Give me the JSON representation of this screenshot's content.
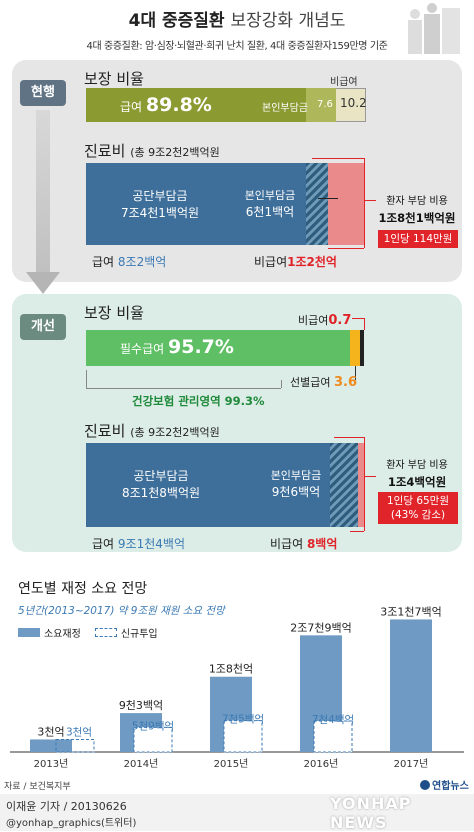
{
  "header": {
    "title_bold": "4대 중증질환",
    "title_light": "보장강화 개념도",
    "subtitle": "4대 중증질환: 암·심장·뇌혈관·희귀 난치 질환, 4대 중증질환자159만명 기준"
  },
  "current": {
    "pill": "현행",
    "coverage_label": "보장 비율",
    "benefit_prefix": "급여",
    "benefit_pct": "89.8%",
    "self_pay_label": "본인부담금",
    "self_pay_pct": "7.6",
    "non_covered_label": "비급여",
    "non_covered_pct": "10.2",
    "cost_label": "진료비",
    "cost_sub": "(총 9조2천2백억원",
    "public_label": "공단부담금",
    "public_value": "7조4천1백억원",
    "self_label": "본인부담금",
    "self_value": "6천1백억",
    "patient_label": "환자 부담 비용",
    "patient_value": "1조8천1백억원",
    "per_person": "1인당 114만원",
    "benefit_total_label": "급여",
    "benefit_total": "8조2백억",
    "non_covered_total_label": "비급여",
    "non_covered_total": "1조2천억"
  },
  "improved": {
    "pill": "개선",
    "coverage_label": "보장 비율",
    "non_covered_label": "비급여",
    "non_covered_pct": "0.7",
    "benefit_prefix": "필수급여",
    "benefit_pct": "95.7%",
    "selective_label": "선별급여",
    "selective_pct": "3.6",
    "managed_label": "건강보험 관리영역",
    "managed_pct": "99.3%",
    "cost_label": "진료비",
    "cost_sub": "(총 9조2천2백억원",
    "public_label": "공단부담금",
    "public_value": "8조1천8백억원",
    "self_label": "본인부담금",
    "self_value": "9천6백억",
    "patient_label": "환자 부담 비용",
    "patient_value": "1조4백억원",
    "per_person": "1인당 65만원",
    "reduction": "(43% 감소)",
    "benefit_total_label": "급여",
    "benefit_total": "9조1천4백억",
    "non_covered_total_label": "비급여",
    "non_covered_total": "8백억"
  },
  "forecast": {
    "title": "연도별 재정 소요 전망",
    "subtitle": "5년간(2013~2017) 약 9조원 재원 소요 전망",
    "legend_required": "소요재정",
    "legend_new": "신규투입"
  },
  "chart_data": {
    "type": "bar",
    "categories": [
      "2013년",
      "2014년",
      "2015년",
      "2016년",
      "2017년"
    ],
    "series": [
      {
        "name": "소요재정",
        "values": [
          3000,
          9300,
          18000,
          27900,
          31700
        ],
        "labels": [
          "3천억",
          "9천3백억",
          "1조8천억",
          "2조7천9백억",
          "3조1천7백억"
        ]
      },
      {
        "name": "신규투입",
        "values": [
          3000,
          5900,
          7500,
          7400,
          null
        ],
        "labels": [
          "3천억",
          "5천9백억",
          "7천5백억",
          "7천4백억",
          ""
        ]
      }
    ],
    "ylim": [
      0,
      33000
    ]
  },
  "footer": {
    "source": "자료 / 보건복지부",
    "credit": "이재윤 기자 / 20130626",
    "twitter": "@yonhap_graphics(트위터)",
    "logo_text": "연합뉴스",
    "watermark": "YONHAP NEWS"
  },
  "colors": {
    "olive": "#8c9a32",
    "navy": "#3e6f9a",
    "green": "#5fbf64",
    "red": "#e0242a",
    "orange": "#f08a1c",
    "chart_bar": "#6f9ac4"
  }
}
